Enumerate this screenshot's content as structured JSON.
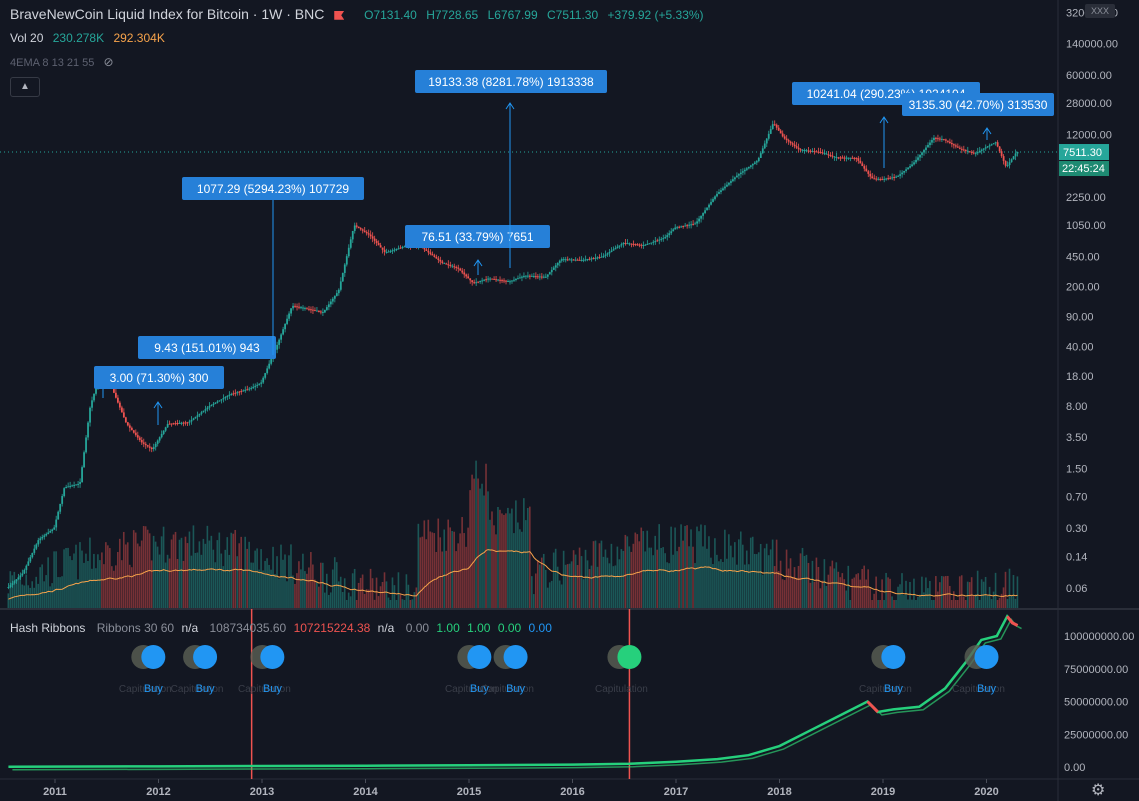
{
  "header": {
    "symbol_title": "BraveNewCoin Liquid Index for Bitcoin · 1W · BNC",
    "open": "O7131.40",
    "high": "H7728.65",
    "low": "L6767.99",
    "close": "C7511.30",
    "change": "+379.92 (+5.33%)"
  },
  "volume": {
    "label": "Vol 20",
    "value": "230.278K",
    "ma": "292.304K"
  },
  "ema_label": "4EMA 8 13 21 55",
  "hash_ribbons": {
    "label": "Hash Ribbons",
    "params": "Ribbons 30 60",
    "v1": "n/a",
    "v2": "108734035.60",
    "v3": "107215224.38",
    "v4": "n/a",
    "v5": "0.00",
    "v6": "1.00",
    "v7": "1.00",
    "v8": "0.00",
    "v9": "0.00"
  },
  "symbol_box": "XXX",
  "colors": {
    "bg": "#131722",
    "up": "#26a69a",
    "down": "#ef5350",
    "accent": "#2196f3",
    "orange": "#f7a34b"
  },
  "chart_data": {
    "type": "candlestick",
    "price_scale": "log",
    "price_axis_labels": [
      "320000.00",
      "140000.00",
      "60000.00",
      "28000.00",
      "12000.00",
      "2250.00",
      "1050.00",
      "450.00",
      "200.00",
      "90.00",
      "40.00",
      "18.00",
      "8.00",
      "3.50",
      "1.50",
      "0.70",
      "0.30",
      "0.14",
      "0.06"
    ],
    "current_price_label": "7511.30",
    "countdown_label": "22:45:24",
    "hash_axis_labels": [
      "100000000.00",
      "75000000.00",
      "50000000.00",
      "25000000.00",
      "0.00"
    ],
    "x_labels": [
      "2011",
      "2012",
      "2013",
      "2014",
      "2015",
      "2016",
      "2017",
      "2018",
      "2019",
      "2020"
    ],
    "price_path": [
      [
        2010.55,
        0.06
      ],
      [
        2010.7,
        0.09
      ],
      [
        2010.85,
        0.22
      ],
      [
        2011.0,
        0.3
      ],
      [
        2011.1,
        0.9
      ],
      [
        2011.25,
        1.0
      ],
      [
        2011.35,
        8
      ],
      [
        2011.45,
        20
      ],
      [
        2011.55,
        14
      ],
      [
        2011.7,
        5
      ],
      [
        2011.85,
        3
      ],
      [
        2011.95,
        2.5
      ],
      [
        2012.1,
        5
      ],
      [
        2012.3,
        5.2
      ],
      [
        2012.5,
        8
      ],
      [
        2012.7,
        11
      ],
      [
        2012.9,
        13
      ],
      [
        2013.0,
        15
      ],
      [
        2013.15,
        40
      ],
      [
        2013.3,
        120
      ],
      [
        2013.45,
        110
      ],
      [
        2013.6,
        100
      ],
      [
        2013.75,
        180
      ],
      [
        2013.9,
        1050
      ],
      [
        2014.05,
        800
      ],
      [
        2014.2,
        500
      ],
      [
        2014.4,
        600
      ],
      [
        2014.55,
        580
      ],
      [
        2014.75,
        380
      ],
      [
        2014.9,
        330
      ],
      [
        2015.05,
        220
      ],
      [
        2015.2,
        250
      ],
      [
        2015.4,
        230
      ],
      [
        2015.55,
        270
      ],
      [
        2015.75,
        260
      ],
      [
        2015.9,
        420
      ],
      [
        2016.1,
        410
      ],
      [
        2016.3,
        450
      ],
      [
        2016.5,
        650
      ],
      [
        2016.7,
        610
      ],
      [
        2016.9,
        750
      ],
      [
        2017.0,
        980
      ],
      [
        2017.2,
        1100
      ],
      [
        2017.4,
        2400
      ],
      [
        2017.6,
        4000
      ],
      [
        2017.8,
        6000
      ],
      [
        2017.95,
        16500
      ],
      [
        2018.05,
        11000
      ],
      [
        2018.2,
        8000
      ],
      [
        2018.4,
        7500
      ],
      [
        2018.55,
        6500
      ],
      [
        2018.75,
        6400
      ],
      [
        2018.9,
        3700
      ],
      [
        2019.0,
        3600
      ],
      [
        2019.15,
        3900
      ],
      [
        2019.3,
        5500
      ],
      [
        2019.5,
        11000
      ],
      [
        2019.6,
        10500
      ],
      [
        2019.75,
        8200
      ],
      [
        2019.9,
        7200
      ],
      [
        2020.0,
        8500
      ],
      [
        2020.1,
        9800
      ],
      [
        2020.2,
        5000
      ],
      [
        2020.3,
        7511
      ]
    ],
    "measure_labels": [
      {
        "text": "3.00 (71.30%) 300",
        "from": 2011.95,
        "to": 2012.0
      },
      {
        "text": "9.43 (151.01%) 943",
        "from": 2012.3,
        "to": 2012.95
      },
      {
        "text": "1077.29 (5294.23%) 107729",
        "from": 2013.1,
        "to": 2013.1
      },
      {
        "text": "76.51 (33.79%) 7651",
        "from": 2015.1,
        "to": 2015.1
      },
      {
        "text": "19133.38 (8281.78%) 1913338",
        "from": 2015.45,
        "to": 2015.45
      },
      {
        "text": "10241.04 (290.23%) 1024104",
        "from": 2019.05,
        "to": 2019.05
      },
      {
        "text": "3135.30 (42.70%) 313530",
        "from": 2020.0,
        "to": 2020.0
      }
    ],
    "signals": [
      {
        "label": "Buy",
        "x": 2011.95,
        "note": "Capitulation"
      },
      {
        "label": "Buy",
        "x": 2012.45,
        "note": "Capitulation"
      },
      {
        "label": "Buy",
        "x": 2013.1,
        "note": "Capitulation"
      },
      {
        "label": "Buy",
        "x": 2015.1,
        "note": "Capitulation"
      },
      {
        "label": "Buy",
        "x": 2015.45,
        "note": "Capitulation"
      },
      {
        "label": "",
        "x": 2016.55,
        "note": "Capitulation"
      },
      {
        "label": "Buy",
        "x": 2019.1,
        "note": "Capitulation"
      },
      {
        "label": "Buy",
        "x": 2020.0,
        "note": "Capitulation"
      }
    ],
    "vertical_lines_x": [
      2012.9,
      2016.55
    ],
    "hash_path": [
      [
        2010.55,
        0.2
      ],
      [
        2012.0,
        0.5
      ],
      [
        2013.0,
        0.8
      ],
      [
        2014.0,
        1.0
      ],
      [
        2015.0,
        1.3
      ],
      [
        2016.0,
        1.8
      ],
      [
        2016.55,
        2.5
      ],
      [
        2017.0,
        4
      ],
      [
        2017.4,
        6
      ],
      [
        2017.7,
        9
      ],
      [
        2018.0,
        16
      ],
      [
        2018.3,
        28
      ],
      [
        2018.6,
        40
      ],
      [
        2018.85,
        50
      ],
      [
        2018.95,
        42
      ],
      [
        2019.1,
        44
      ],
      [
        2019.35,
        46
      ],
      [
        2019.6,
        60
      ],
      [
        2019.8,
        80
      ],
      [
        2019.95,
        97
      ],
      [
        2020.1,
        100
      ],
      [
        2020.2,
        115
      ],
      [
        2020.25,
        110
      ],
      [
        2020.3,
        108
      ]
    ]
  }
}
